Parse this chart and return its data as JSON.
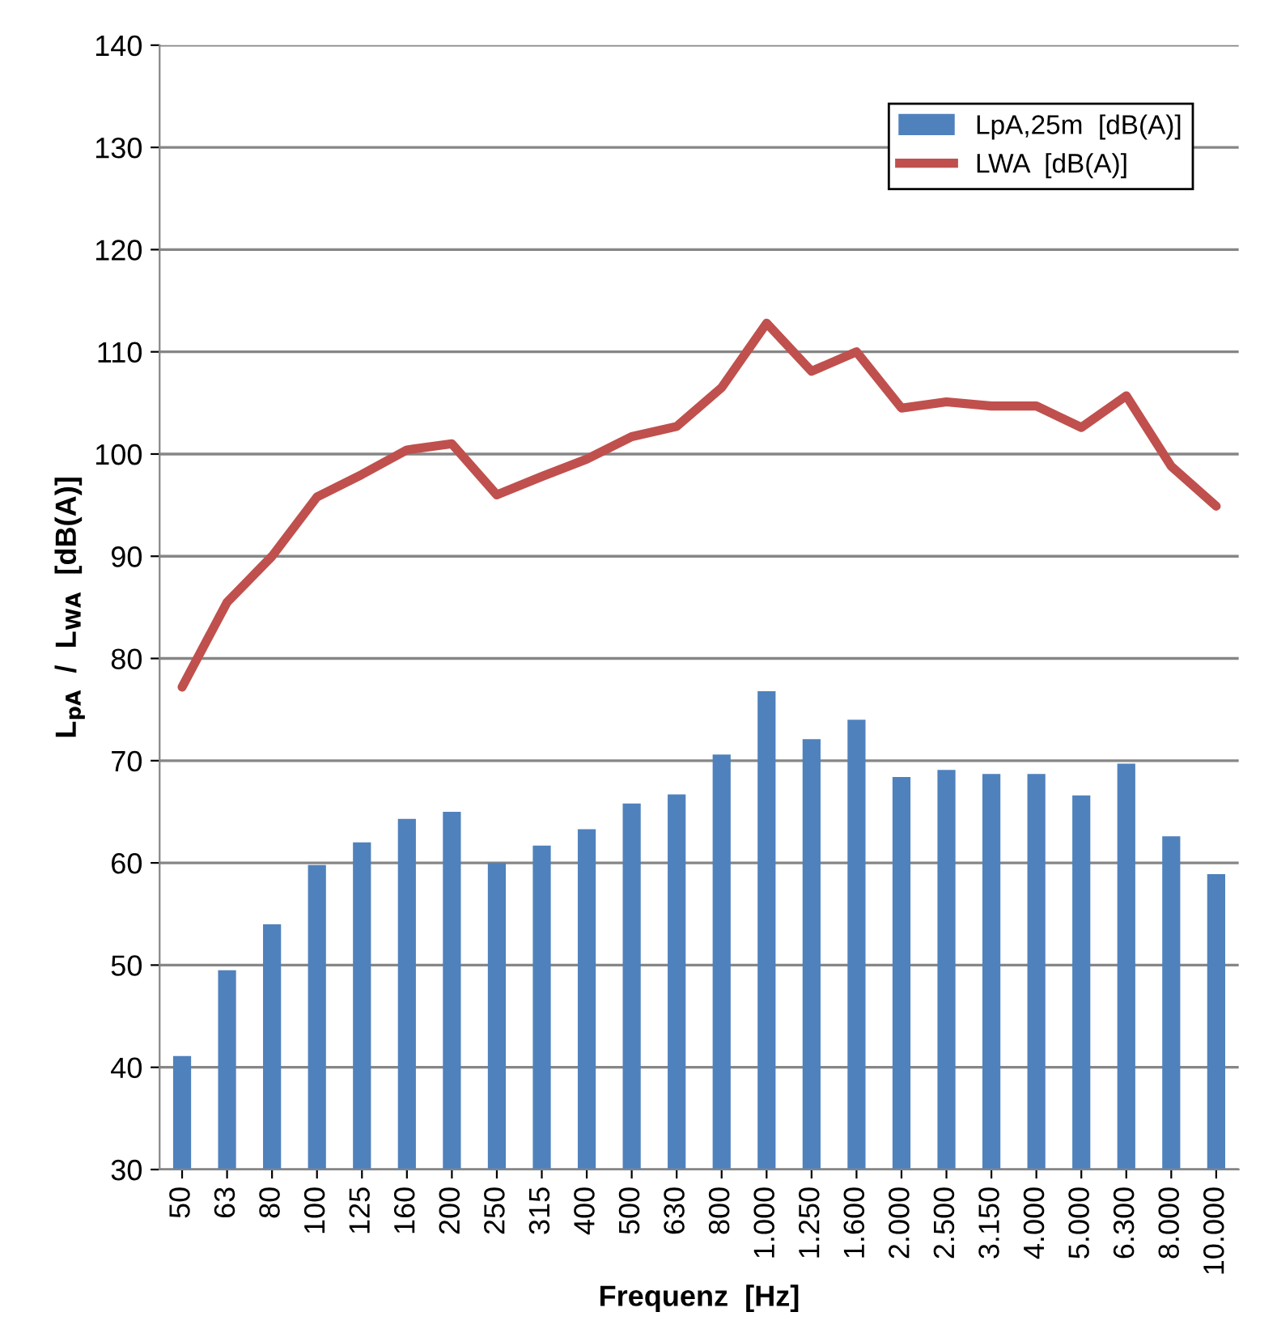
{
  "chart_data": {
    "type": "bar",
    "xlabel": "Frequenz  [Hz]",
    "ylabel": "L$_{pA}$  /  L$_{WA}$  [dB(A)]",
    "categories": [
      "50",
      "63",
      "80",
      "100",
      "125",
      "160",
      "200",
      "250",
      "315",
      "400",
      "500",
      "630",
      "800",
      "1.000",
      "1.250",
      "1.600",
      "2.000",
      "2.500",
      "3.150",
      "4.000",
      "5.000",
      "6.300",
      "8.000",
      "10.000"
    ],
    "series": [
      {
        "name": "LpA,25m  [dB(A)]",
        "color": "#4f81bd",
        "values": [
          41.1,
          49.5,
          54,
          59.8,
          62,
          64.3,
          65,
          60,
          61.7,
          63.3,
          65.8,
          66.7,
          70.6,
          76.8,
          72.1,
          74,
          68.4,
          69.1,
          68.7,
          68.7,
          66.6,
          69.7,
          62.6,
          58.9
        ]
      },
      {
        "name": "LWA  [dB(A)]",
        "type": "line",
        "color": "#c0504d",
        "values": [
          77.2,
          85.5,
          90,
          95.8,
          98,
          100.4,
          101,
          96,
          97.8,
          99.5,
          101.7,
          102.7,
          106.5,
          112.8,
          108.1,
          110,
          104.5,
          105.1,
          104.7,
          104.7,
          102.6,
          105.7,
          98.8,
          94.9
        ]
      }
    ],
    "ylim": [
      30,
      140
    ],
    "yticks": [
      30,
      40,
      50,
      60,
      70,
      80,
      90,
      100,
      110,
      120,
      130,
      140
    ],
    "grid": "y",
    "legend": "top right",
    "marker": "none",
    "line_style": "solid"
  }
}
